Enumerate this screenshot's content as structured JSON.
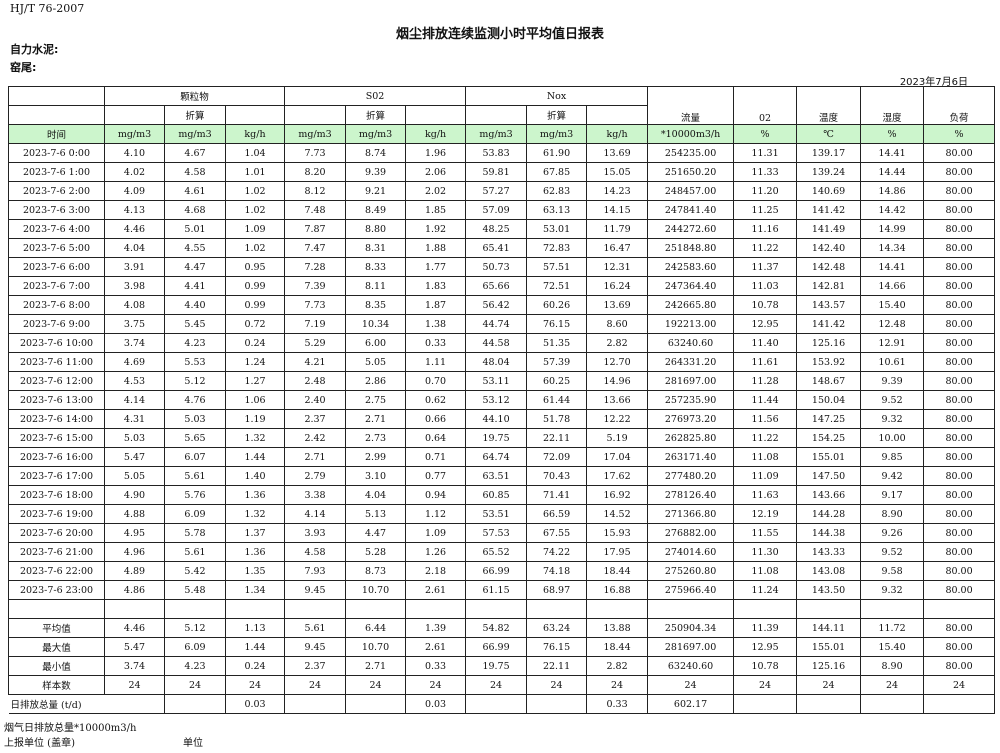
{
  "header": {
    "standard": "HJ/T  76-2007",
    "title": "烟尘排放连续监测小时平均值日报表",
    "company": "自力水泥:",
    "kiln": "窑尾:",
    "date": "2023年7月6日"
  },
  "table": {
    "header_row1": [
      "",
      "颗粒物",
      "S02",
      "Nox",
      "流量",
      "02",
      "温度",
      "湿度",
      "负荷"
    ],
    "header_row2": [
      "",
      "",
      "折算",
      "",
      "",
      "折算",
      "",
      "",
      "折算",
      ""
    ],
    "units": [
      "时间",
      "mg/m3",
      "mg/m3",
      "kg/h",
      "mg/m3",
      "mg/m3",
      "kg/h",
      "mg/m3",
      "mg/m3",
      "kg/h",
      "*10000m3/h",
      "%",
      "℃",
      "%",
      "%"
    ],
    "rows": [
      [
        "2023-7-6 0:00",
        "4.10",
        "4.67",
        "1.04",
        "7.73",
        "8.74",
        "1.96",
        "53.83",
        "61.90",
        "13.69",
        "254235.00",
        "11.31",
        "139.17",
        "14.41",
        "80.00"
      ],
      [
        "2023-7-6 1:00",
        "4.02",
        "4.58",
        "1.01",
        "8.20",
        "9.39",
        "2.06",
        "59.81",
        "67.85",
        "15.05",
        "251650.20",
        "11.33",
        "139.24",
        "14.44",
        "80.00"
      ],
      [
        "2023-7-6 2:00",
        "4.09",
        "4.61",
        "1.02",
        "8.12",
        "9.21",
        "2.02",
        "57.27",
        "62.83",
        "14.23",
        "248457.00",
        "11.20",
        "140.69",
        "14.86",
        "80.00"
      ],
      [
        "2023-7-6 3:00",
        "4.13",
        "4.68",
        "1.02",
        "7.48",
        "8.49",
        "1.85",
        "57.09",
        "63.13",
        "14.15",
        "247841.40",
        "11.25",
        "141.42",
        "14.42",
        "80.00"
      ],
      [
        "2023-7-6 4:00",
        "4.46",
        "5.01",
        "1.09",
        "7.87",
        "8.80",
        "1.92",
        "48.25",
        "53.01",
        "11.79",
        "244272.60",
        "11.16",
        "141.49",
        "14.99",
        "80.00"
      ],
      [
        "2023-7-6 5:00",
        "4.04",
        "4.55",
        "1.02",
        "7.47",
        "8.31",
        "1.88",
        "65.41",
        "72.83",
        "16.47",
        "251848.80",
        "11.22",
        "142.40",
        "14.34",
        "80.00"
      ],
      [
        "2023-7-6 6:00",
        "3.91",
        "4.47",
        "0.95",
        "7.28",
        "8.33",
        "1.77",
        "50.73",
        "57.51",
        "12.31",
        "242583.60",
        "11.37",
        "142.48",
        "14.41",
        "80.00"
      ],
      [
        "2023-7-6 7:00",
        "3.98",
        "4.41",
        "0.99",
        "7.39",
        "8.11",
        "1.83",
        "65.66",
        "72.51",
        "16.24",
        "247364.40",
        "11.03",
        "142.81",
        "14.66",
        "80.00"
      ],
      [
        "2023-7-6 8:00",
        "4.08",
        "4.40",
        "0.99",
        "7.73",
        "8.35",
        "1.87",
        "56.42",
        "60.26",
        "13.69",
        "242665.80",
        "10.78",
        "143.57",
        "15.40",
        "80.00"
      ],
      [
        "2023-7-6 9:00",
        "3.75",
        "5.45",
        "0.72",
        "7.19",
        "10.34",
        "1.38",
        "44.74",
        "76.15",
        "8.60",
        "192213.00",
        "12.95",
        "141.42",
        "12.48",
        "80.00"
      ],
      [
        "2023-7-6 10:00",
        "3.74",
        "4.23",
        "0.24",
        "5.29",
        "6.00",
        "0.33",
        "44.58",
        "51.35",
        "2.82",
        "63240.60",
        "11.40",
        "125.16",
        "12.91",
        "80.00"
      ],
      [
        "2023-7-6 11:00",
        "4.69",
        "5.53",
        "1.24",
        "4.21",
        "5.05",
        "1.11",
        "48.04",
        "57.39",
        "12.70",
        "264331.20",
        "11.61",
        "153.92",
        "10.61",
        "80.00"
      ],
      [
        "2023-7-6 12:00",
        "4.53",
        "5.12",
        "1.27",
        "2.48",
        "2.86",
        "0.70",
        "53.11",
        "60.25",
        "14.96",
        "281697.00",
        "11.28",
        "148.67",
        "9.39",
        "80.00"
      ],
      [
        "2023-7-6 13:00",
        "4.14",
        "4.76",
        "1.06",
        "2.40",
        "2.75",
        "0.62",
        "53.12",
        "61.44",
        "13.66",
        "257235.90",
        "11.44",
        "150.04",
        "9.52",
        "80.00"
      ],
      [
        "2023-7-6 14:00",
        "4.31",
        "5.03",
        "1.19",
        "2.37",
        "2.71",
        "0.66",
        "44.10",
        "51.78",
        "12.22",
        "276973.20",
        "11.56",
        "147.25",
        "9.32",
        "80.00"
      ],
      [
        "2023-7-6 15:00",
        "5.03",
        "5.65",
        "1.32",
        "2.42",
        "2.73",
        "0.64",
        "19.75",
        "22.11",
        "5.19",
        "262825.80",
        "11.22",
        "154.25",
        "10.00",
        "80.00"
      ],
      [
        "2023-7-6 16:00",
        "5.47",
        "6.07",
        "1.44",
        "2.71",
        "2.99",
        "0.71",
        "64.74",
        "72.09",
        "17.04",
        "263171.40",
        "11.08",
        "155.01",
        "9.85",
        "80.00"
      ],
      [
        "2023-7-6 17:00",
        "5.05",
        "5.61",
        "1.40",
        "2.79",
        "3.10",
        "0.77",
        "63.51",
        "70.43",
        "17.62",
        "277480.20",
        "11.09",
        "147.50",
        "9.42",
        "80.00"
      ],
      [
        "2023-7-6 18:00",
        "4.90",
        "5.76",
        "1.36",
        "3.38",
        "4.04",
        "0.94",
        "60.85",
        "71.41",
        "16.92",
        "278126.40",
        "11.63",
        "143.66",
        "9.17",
        "80.00"
      ],
      [
        "2023-7-6 19:00",
        "4.88",
        "6.09",
        "1.32",
        "4.14",
        "5.13",
        "1.12",
        "53.51",
        "66.59",
        "14.52",
        "271366.80",
        "12.19",
        "144.28",
        "8.90",
        "80.00"
      ],
      [
        "2023-7-6 20:00",
        "4.95",
        "5.78",
        "1.37",
        "3.93",
        "4.47",
        "1.09",
        "57.53",
        "67.55",
        "15.93",
        "276882.00",
        "11.55",
        "144.38",
        "9.26",
        "80.00"
      ],
      [
        "2023-7-6 21:00",
        "4.96",
        "5.61",
        "1.36",
        "4.58",
        "5.28",
        "1.26",
        "65.52",
        "74.22",
        "17.95",
        "274014.60",
        "11.30",
        "143.33",
        "9.52",
        "80.00"
      ],
      [
        "2023-7-6 22:00",
        "4.89",
        "5.42",
        "1.35",
        "7.93",
        "8.73",
        "2.18",
        "66.99",
        "74.18",
        "18.44",
        "275260.80",
        "11.08",
        "143.08",
        "9.58",
        "80.00"
      ],
      [
        "2023-7-6 23:00",
        "4.86",
        "5.48",
        "1.34",
        "9.45",
        "10.70",
        "2.61",
        "61.15",
        "68.97",
        "16.88",
        "275966.40",
        "11.24",
        "143.50",
        "9.32",
        "80.00"
      ]
    ],
    "blank_row": [
      "",
      "",
      "",
      "",
      "",
      "",
      "",
      "",
      "",
      "",
      "",
      "",
      "",
      "",
      ""
    ],
    "summary": [
      [
        "平均值",
        "4.46",
        "5.12",
        "1.13",
        "5.61",
        "6.44",
        "1.39",
        "54.82",
        "63.24",
        "13.88",
        "250904.34",
        "11.39",
        "144.11",
        "11.72",
        "80.00"
      ],
      [
        "最大值",
        "5.47",
        "6.09",
        "1.44",
        "9.45",
        "10.70",
        "2.61",
        "66.99",
        "76.15",
        "18.44",
        "281697.00",
        "12.95",
        "155.01",
        "15.40",
        "80.00"
      ],
      [
        "最小值",
        "3.74",
        "4.23",
        "0.24",
        "2.37",
        "2.71",
        "0.33",
        "19.75",
        "22.11",
        "2.82",
        "63240.60",
        "10.78",
        "125.16",
        "8.90",
        "80.00"
      ],
      [
        "样本数",
        "24",
        "24",
        "24",
        "24",
        "24",
        "24",
        "24",
        "24",
        "24",
        "24",
        "24",
        "24",
        "24",
        "24"
      ]
    ],
    "daily_total": [
      "日排放总量 (t/d)",
      "",
      "0.03",
      "",
      "",
      "0.03",
      "",
      "",
      "0.33",
      "602.17",
      "",
      "",
      "",
      ""
    ]
  },
  "footer": {
    "flue_gas_total": "烟气日排放总量*10000m3/h",
    "reporting_unit": "上报单位 (盖章)",
    "unit": "单位"
  }
}
